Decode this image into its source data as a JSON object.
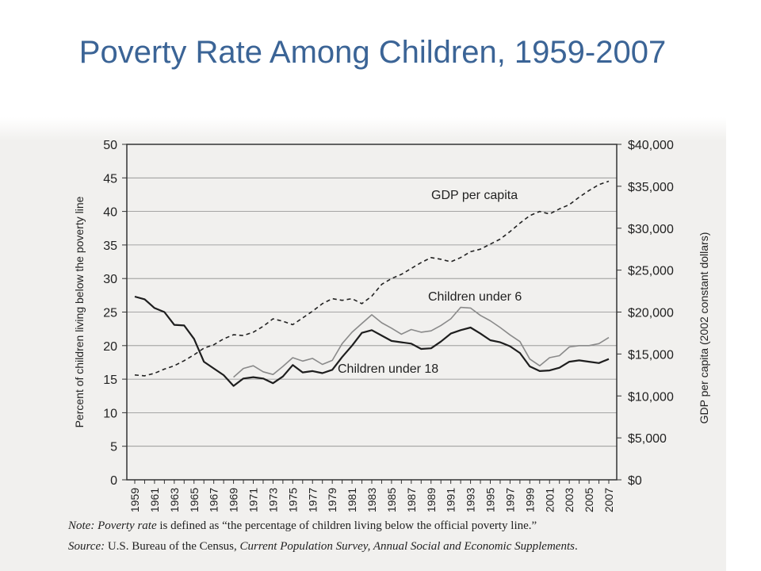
{
  "title": "Poverty Rate Among Children, 1959-2007",
  "colors": {
    "title": "#3b6496",
    "children_under_18": "#1e1e1e",
    "children_under_6": "#8a8a8a",
    "gdp_per_capita": "#222222",
    "background": "#f1f0ee"
  },
  "chart_data": {
    "type": "line",
    "x": [
      1959,
      1960,
      1961,
      1962,
      1963,
      1964,
      1965,
      1966,
      1967,
      1968,
      1969,
      1970,
      1971,
      1972,
      1973,
      1974,
      1975,
      1976,
      1977,
      1978,
      1979,
      1980,
      1981,
      1982,
      1983,
      1984,
      1985,
      1986,
      1987,
      1988,
      1989,
      1990,
      1991,
      1992,
      1993,
      1994,
      1995,
      1996,
      1997,
      1998,
      1999,
      2000,
      2001,
      2002,
      2003,
      2004,
      2005,
      2006,
      2007
    ],
    "x_tick_labels": [
      "1959",
      "1961",
      "1963",
      "1965",
      "1967",
      "1969",
      "1971",
      "1973",
      "1975",
      "1977",
      "1979",
      "1981",
      "1983",
      "1985",
      "1987",
      "1989",
      "1991",
      "1993",
      "1995",
      "1997",
      "1999",
      "2001",
      "2003",
      "2005",
      "2007"
    ],
    "ylabel": "Percent of children living below the poverty line",
    "ylim": [
      0,
      50
    ],
    "y_tick_labels": [
      "0",
      "5",
      "10",
      "15",
      "20",
      "25",
      "30",
      "35",
      "40",
      "45",
      "50"
    ],
    "y2label": "GDP per capita (2002 constant dollars)",
    "y2lim": [
      0,
      40000
    ],
    "y2_tick_labels": [
      "$0",
      "$5,000",
      "$10,000",
      "$15,000",
      "$20,000",
      "$25,000",
      "$30,000",
      "$35,000",
      "$40,000"
    ],
    "grid": "horizontal",
    "series": [
      {
        "name": "Children under 18",
        "axis": "left",
        "style": "solid",
        "values": [
          27.3,
          26.9,
          25.6,
          25.0,
          23.1,
          23.0,
          21.0,
          17.6,
          16.6,
          15.6,
          14.0,
          15.1,
          15.3,
          15.1,
          14.4,
          15.4,
          17.1,
          16.0,
          16.2,
          15.9,
          16.4,
          18.3,
          20.0,
          21.9,
          22.3,
          21.5,
          20.7,
          20.5,
          20.3,
          19.5,
          19.6,
          20.6,
          21.8,
          22.3,
          22.7,
          21.8,
          20.8,
          20.5,
          19.9,
          18.9,
          16.9,
          16.2,
          16.3,
          16.7,
          17.6,
          17.8,
          17.6,
          17.4,
          18.0
        ]
      },
      {
        "name": "Children under 6",
        "axis": "left",
        "style": "solid",
        "values": [
          null,
          null,
          null,
          null,
          null,
          null,
          null,
          null,
          null,
          null,
          15.3,
          16.6,
          17.0,
          16.1,
          15.7,
          16.9,
          18.2,
          17.7,
          18.1,
          17.2,
          17.8,
          20.3,
          22.0,
          23.3,
          24.6,
          23.4,
          22.6,
          21.7,
          22.4,
          22.0,
          22.2,
          23.0,
          24.0,
          25.7,
          25.6,
          24.5,
          23.7,
          22.7,
          21.6,
          20.6,
          18.0,
          17.0,
          18.2,
          18.5,
          19.8,
          20.0,
          20.0,
          20.3,
          21.2
        ]
      },
      {
        "name": "GDP per capita",
        "axis": "right",
        "style": "dashed",
        "values": [
          12500,
          12400,
          12700,
          13200,
          13600,
          14200,
          14900,
          15700,
          16100,
          16800,
          17300,
          17200,
          17600,
          18300,
          19200,
          18900,
          18500,
          19300,
          20100,
          21000,
          21600,
          21400,
          21600,
          21000,
          21900,
          23300,
          24000,
          24500,
          25200,
          25900,
          26500,
          26300,
          26000,
          26500,
          27200,
          27500,
          28100,
          28700,
          29600,
          30600,
          31500,
          32000,
          31700,
          32300,
          32800,
          33700,
          34500,
          35200,
          35600
        ]
      }
    ]
  },
  "note": {
    "label": "Note:",
    "term": "Poverty rate",
    "text": " is defined as “the percentage of children living below the official poverty line.”"
  },
  "source": {
    "label": "Source:",
    "text": " U.S. Bureau of the Census, ",
    "publication": "Current Population Survey, Annual Social and Economic Supplements",
    "end": "."
  }
}
